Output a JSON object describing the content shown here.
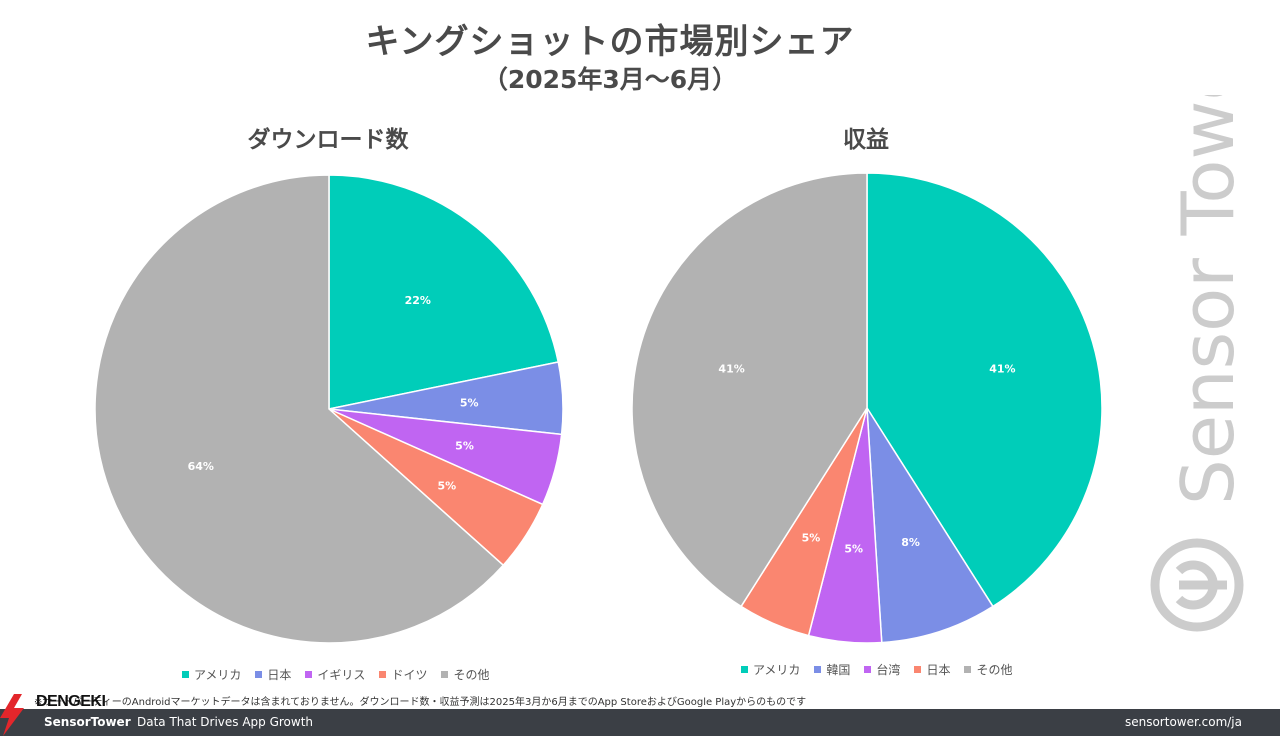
{
  "header": {
    "title": "キングショットの市場別シェア",
    "subtitle": "（2025年3月〜6月）"
  },
  "chart_data": [
    {
      "type": "pie",
      "title": "ダウンロード数",
      "labels": [
        "アメリカ",
        "日本",
        "イギリス",
        "ドイツ",
        "その他"
      ],
      "values": [
        22,
        5,
        5,
        5,
        64
      ],
      "value_labels": [
        "22%",
        "5%",
        "5%",
        "5%",
        "64%"
      ],
      "colors": [
        "#00cdb9",
        "#7b8ee6",
        "#c065f2",
        "#fa8670",
        "#b2b2b2"
      ]
    },
    {
      "type": "pie",
      "title": "収益",
      "labels": [
        "アメリカ",
        "韓国",
        "台湾",
        "日本",
        "その他"
      ],
      "values": [
        41,
        8,
        5,
        5,
        41
      ],
      "value_labels": [
        "41%",
        "8%",
        "5%",
        "5%",
        "41%"
      ],
      "colors": [
        "#00cdb9",
        "#7b8ee6",
        "#c065f2",
        "#fa8670",
        "#b2b2b2"
      ]
    }
  ],
  "footnote": "※サードパーティーのAndroidマーケットデータは含まれておりません。ダウンロード数・収益予測は2025年3月か6月までのApp StoreおよびGoogle Playからのものです",
  "watermark": {
    "text": "Sensor Tower",
    "icon": "sensor-tower-logo-icon",
    "color": "#cccccc"
  },
  "footer": {
    "brand": "SensorTower",
    "tagline": "Data That Drives App Growth",
    "url": "sensortower.com/ja",
    "background": "#3b3f45"
  },
  "overlay_logo": {
    "text": "DENGEKI",
    "icon": "lightning-bolt-icon",
    "color": "#e3262b"
  }
}
